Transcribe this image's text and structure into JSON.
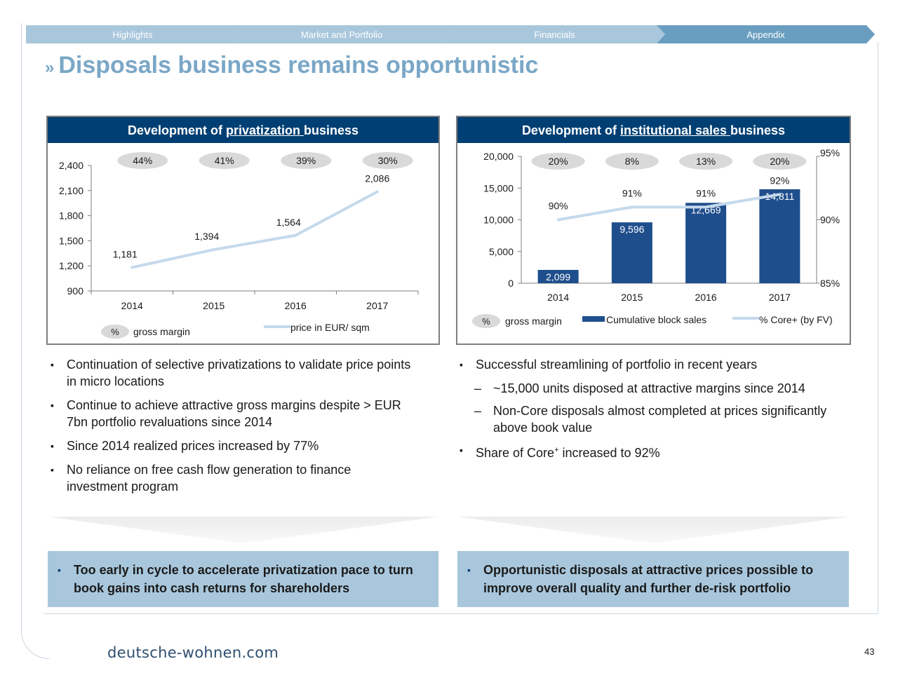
{
  "nav": {
    "tabs": [
      {
        "label": "Highlights",
        "active": false
      },
      {
        "label": "Market and Portfolio",
        "active": false
      },
      {
        "label": "Financials",
        "active": false
      },
      {
        "label": "Appendix",
        "active": true
      }
    ]
  },
  "page": {
    "title_marker": "»",
    "title": "Disposals business remains opportunistic",
    "page_number": "43",
    "footer_logo": "deutsche-wohnen.com"
  },
  "left_panel": {
    "head_prefix": "Development of ",
    "head_underlined": "privatization ",
    "head_suffix": "business"
  },
  "right_panel": {
    "head_prefix": "Development of ",
    "head_underlined": "institutional sales ",
    "head_suffix": "business"
  },
  "chart_data": [
    {
      "type": "line",
      "categories": [
        "2014",
        "2015",
        "2016",
        "2017"
      ],
      "series": [
        {
          "name": "price in EUR/ sqm",
          "values": [
            1181,
            1394,
            1564,
            2086
          ],
          "labels": [
            "1,181",
            "1,394",
            "1,564",
            "2,086"
          ],
          "color": "#c5d9ec"
        }
      ],
      "gross_margin": [
        "44%",
        "41%",
        "39%",
        "30%"
      ],
      "y_ticks": [
        "2,400",
        "2,100",
        "1,800",
        "1,500",
        "1,200",
        "900"
      ],
      "y_tick_values": [
        2400,
        2100,
        1800,
        1500,
        1200,
        900
      ],
      "ylim": [
        900,
        2400
      ],
      "legend": {
        "margin_symbol": "%",
        "margin_label": "gross margin",
        "line_label": "price in EUR/ sqm"
      },
      "legend_position": "bottom",
      "grid": false
    },
    {
      "type": "bar",
      "categories": [
        "2014",
        "2015",
        "2016",
        "2017"
      ],
      "series": [
        {
          "name": "Cumulative block sales",
          "values": [
            2099,
            9596,
            12669,
            14811
          ],
          "labels": [
            "2,099",
            "9,596",
            "12,669",
            "14,811"
          ],
          "color": "#1f4e8c"
        },
        {
          "name": "% Core+ (by FV)",
          "values": [
            90,
            91,
            91,
            92
          ],
          "labels": [
            "90%",
            "91%",
            "91%",
            "92%"
          ],
          "color": "#c5d9ec",
          "axis": "right"
        }
      ],
      "gross_margin": [
        "20%",
        "8%",
        "13%",
        "20%"
      ],
      "y_ticks": [
        "20,000",
        "15,000",
        "10,000",
        "5,000",
        "0"
      ],
      "y_tick_values": [
        20000,
        15000,
        10000,
        5000,
        0
      ],
      "ylim": [
        0,
        20000
      ],
      "y2_ticks": [
        "95%",
        "90%",
        "85%"
      ],
      "y2_tick_values": [
        95,
        90,
        85
      ],
      "y2lim": [
        85,
        95
      ],
      "legend": {
        "margin_symbol": "%",
        "margin_label": "gross margin",
        "bar_label": "Cumulative block sales",
        "line_label": "% Core+ (by FV)"
      },
      "legend_position": "bottom",
      "grid": false
    }
  ],
  "bullets_left": [
    "Continuation of selective privatizations to validate price points in micro locations",
    "Continue to achieve attractive gross margins despite > EUR 7bn portfolio revaluations since 2014",
    "Since 2014 realized prices increased by 77%",
    "No reliance on free cash flow generation to finance investment program"
  ],
  "bullets_right": {
    "b1": "Successful streamlining of portfolio in recent years",
    "sub1": "~15,000 units disposed at attractive margins since 2014",
    "sub2": "Non-Core disposals almost completed at prices significantly above book value",
    "b2_pre": "Share of Core",
    "b2_sup": "+",
    "b2_post": " increased to 92%"
  },
  "conclusions": {
    "left": "Too early in cycle to accelerate privatization pace to turn book gains into cash returns for shareholders",
    "right": "Opportunistic disposals at attractive prices possible to improve overall quality and further de-risk portfolio"
  },
  "colors": {
    "header_navy": "#003f73",
    "title_blue": "#7aa7c7",
    "nav_inactive": "#a9c7dc",
    "nav_active": "#6a9ec0",
    "bar_navy": "#1f4e8c",
    "line_light": "#c5d9ec",
    "conclusion_bg": "#a9c7dc"
  }
}
